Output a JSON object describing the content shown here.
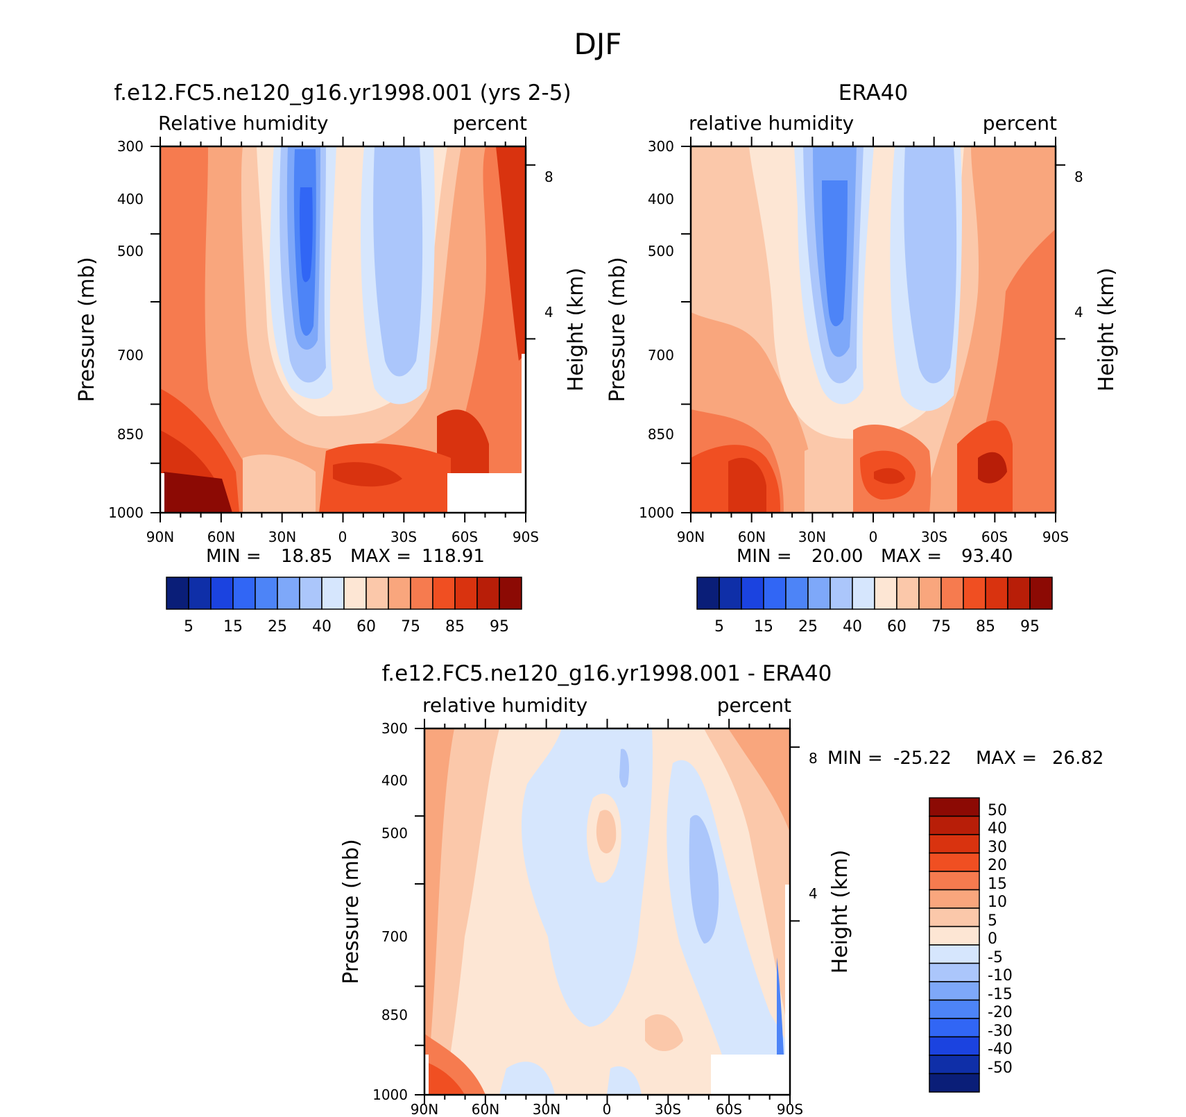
{
  "figure_title": "DJF",
  "colors": {
    "rh_levels": [
      "#0a1e78",
      "#0f2fa8",
      "#1b43e0",
      "#3166f5",
      "#4d84f7",
      "#7ea8f9",
      "#abc6fb",
      "#d6e6fd",
      "#fde6d4",
      "#fbc8aa",
      "#f9a67d",
      "#f67b4f",
      "#f04f22",
      "#d9330f",
      "#b81e08",
      "#8c0a04"
    ],
    "diff_levels": [
      "#0a1e78",
      "#0f2fa8",
      "#1b43e0",
      "#3166f5",
      "#4d84f7",
      "#7ea8f9",
      "#abc6fb",
      "#d6e6fd",
      "#fde6d4",
      "#fbc8aa",
      "#f9a67d",
      "#f67b4f",
      "#f04f22",
      "#d9330f",
      "#b81e08",
      "#8c0a04"
    ]
  },
  "chart_data": [
    {
      "type": "heatmap",
      "title": "f.e12.FC5.ne120_g16.yr1998.001 (yrs 2-5)",
      "left_label": "Relative humidity",
      "right_label": "percent",
      "xlabel": "",
      "ylabel": "Pressure (mb)",
      "y2label": "Height (km)",
      "x_ticks": [
        "90N",
        "60N",
        "30N",
        "0",
        "30S",
        "60S",
        "90S"
      ],
      "y_ticks": [
        "300",
        "400",
        "500",
        "700",
        "850",
        "1000"
      ],
      "y2_ticks": [
        "8",
        "4"
      ],
      "xlim": [
        90,
        -90
      ],
      "ylim": [
        1000,
        300
      ],
      "min_label": "MIN =",
      "min_value": "18.85",
      "max_label": "MAX =",
      "max_value": "118.91",
      "colorbar_labels": [
        "5",
        "15",
        "25",
        "40",
        "60",
        "75",
        "85",
        "95"
      ],
      "approx_field_percent": {
        "latitudes": [
          90,
          60,
          30,
          15,
          0,
          -15,
          -30,
          -60,
          -90
        ],
        "pressures": [
          300,
          500,
          700,
          850,
          1000
        ],
        "rows": [
          [
            78,
            70,
            55,
            20,
            45,
            35,
            40,
            72,
            88
          ],
          [
            80,
            72,
            50,
            18,
            55,
            35,
            40,
            75,
            90
          ],
          [
            82,
            74,
            55,
            30,
            62,
            45,
            48,
            78,
            85
          ],
          [
            88,
            80,
            65,
            55,
            75,
            70,
            68,
            90,
            86
          ],
          [
            100,
            92,
            72,
            70,
            82,
            85,
            84,
            0,
            0
          ]
        ]
      }
    },
    {
      "type": "heatmap",
      "title": "ERA40",
      "left_label": "relative humidity",
      "right_label": "percent",
      "xlabel": "",
      "ylabel": "Pressure (mb)",
      "y2label": "Height (km)",
      "x_ticks": [
        "90N",
        "60N",
        "30N",
        "0",
        "30S",
        "60S",
        "90S"
      ],
      "y_ticks": [
        "300",
        "400",
        "500",
        "700",
        "850",
        "1000"
      ],
      "y2_ticks": [
        "8",
        "4"
      ],
      "xlim": [
        90,
        -90
      ],
      "ylim": [
        1000,
        300
      ],
      "min_label": "MIN =",
      "min_value": "20.00",
      "max_label": "MAX =",
      "max_value": "93.40",
      "colorbar_labels": [
        "5",
        "15",
        "25",
        "40",
        "60",
        "75",
        "85",
        "95"
      ],
      "approx_field_percent": {
        "latitudes": [
          90,
          60,
          30,
          15,
          0,
          -15,
          -30,
          -60,
          -90
        ],
        "pressures": [
          300,
          500,
          700,
          850,
          1000
        ],
        "rows": [
          [
            62,
            62,
            55,
            30,
            45,
            35,
            40,
            65,
            68
          ],
          [
            65,
            65,
            55,
            22,
            55,
            35,
            40,
            70,
            75
          ],
          [
            72,
            70,
            58,
            30,
            62,
            45,
            48,
            75,
            80
          ],
          [
            82,
            82,
            68,
            55,
            75,
            70,
            68,
            85,
            82
          ],
          [
            88,
            90,
            74,
            70,
            82,
            85,
            84,
            88,
            86
          ]
        ]
      }
    },
    {
      "type": "heatmap",
      "title": "f.e12.FC5.ne120_g16.yr1998.001 - ERA40",
      "left_label": "relative humidity",
      "right_label": "percent",
      "xlabel": "",
      "ylabel": "Pressure (mb)",
      "y2label": "Height (km)",
      "x_ticks": [
        "90N",
        "60N",
        "30N",
        "0",
        "30S",
        "60S",
        "90S"
      ],
      "y_ticks": [
        "300",
        "400",
        "500",
        "700",
        "850",
        "1000"
      ],
      "y2_ticks": [
        "8",
        "4"
      ],
      "xlim": [
        90,
        -90
      ],
      "ylim": [
        1000,
        300
      ],
      "min_label": "MIN =",
      "min_value": "-25.22",
      "max_label": "MAX =",
      "max_value": "26.82",
      "colorbar_labels": [
        "50",
        "40",
        "30",
        "20",
        "15",
        "10",
        "5",
        "0",
        "-5",
        "-10",
        "-15",
        "-20",
        "-30",
        "-40",
        "-50"
      ],
      "approx_field_percent": {
        "latitudes": [
          90,
          60,
          30,
          15,
          0,
          -15,
          -30,
          -60,
          -90
        ],
        "pressures": [
          300,
          500,
          700,
          850,
          1000
        ],
        "rows": [
          [
            15,
            8,
            2,
            -3,
            2,
            -3,
            2,
            8,
            18
          ],
          [
            12,
            6,
            2,
            -3,
            8,
            -3,
            -8,
            4,
            12
          ],
          [
            8,
            3,
            -1,
            -3,
            3,
            -4,
            -8,
            -3,
            6
          ],
          [
            5,
            3,
            1,
            -2,
            1,
            -2,
            2,
            6,
            3
          ],
          [
            12,
            5,
            2,
            -1,
            2,
            2,
            4,
            0,
            0
          ]
        ]
      }
    }
  ]
}
